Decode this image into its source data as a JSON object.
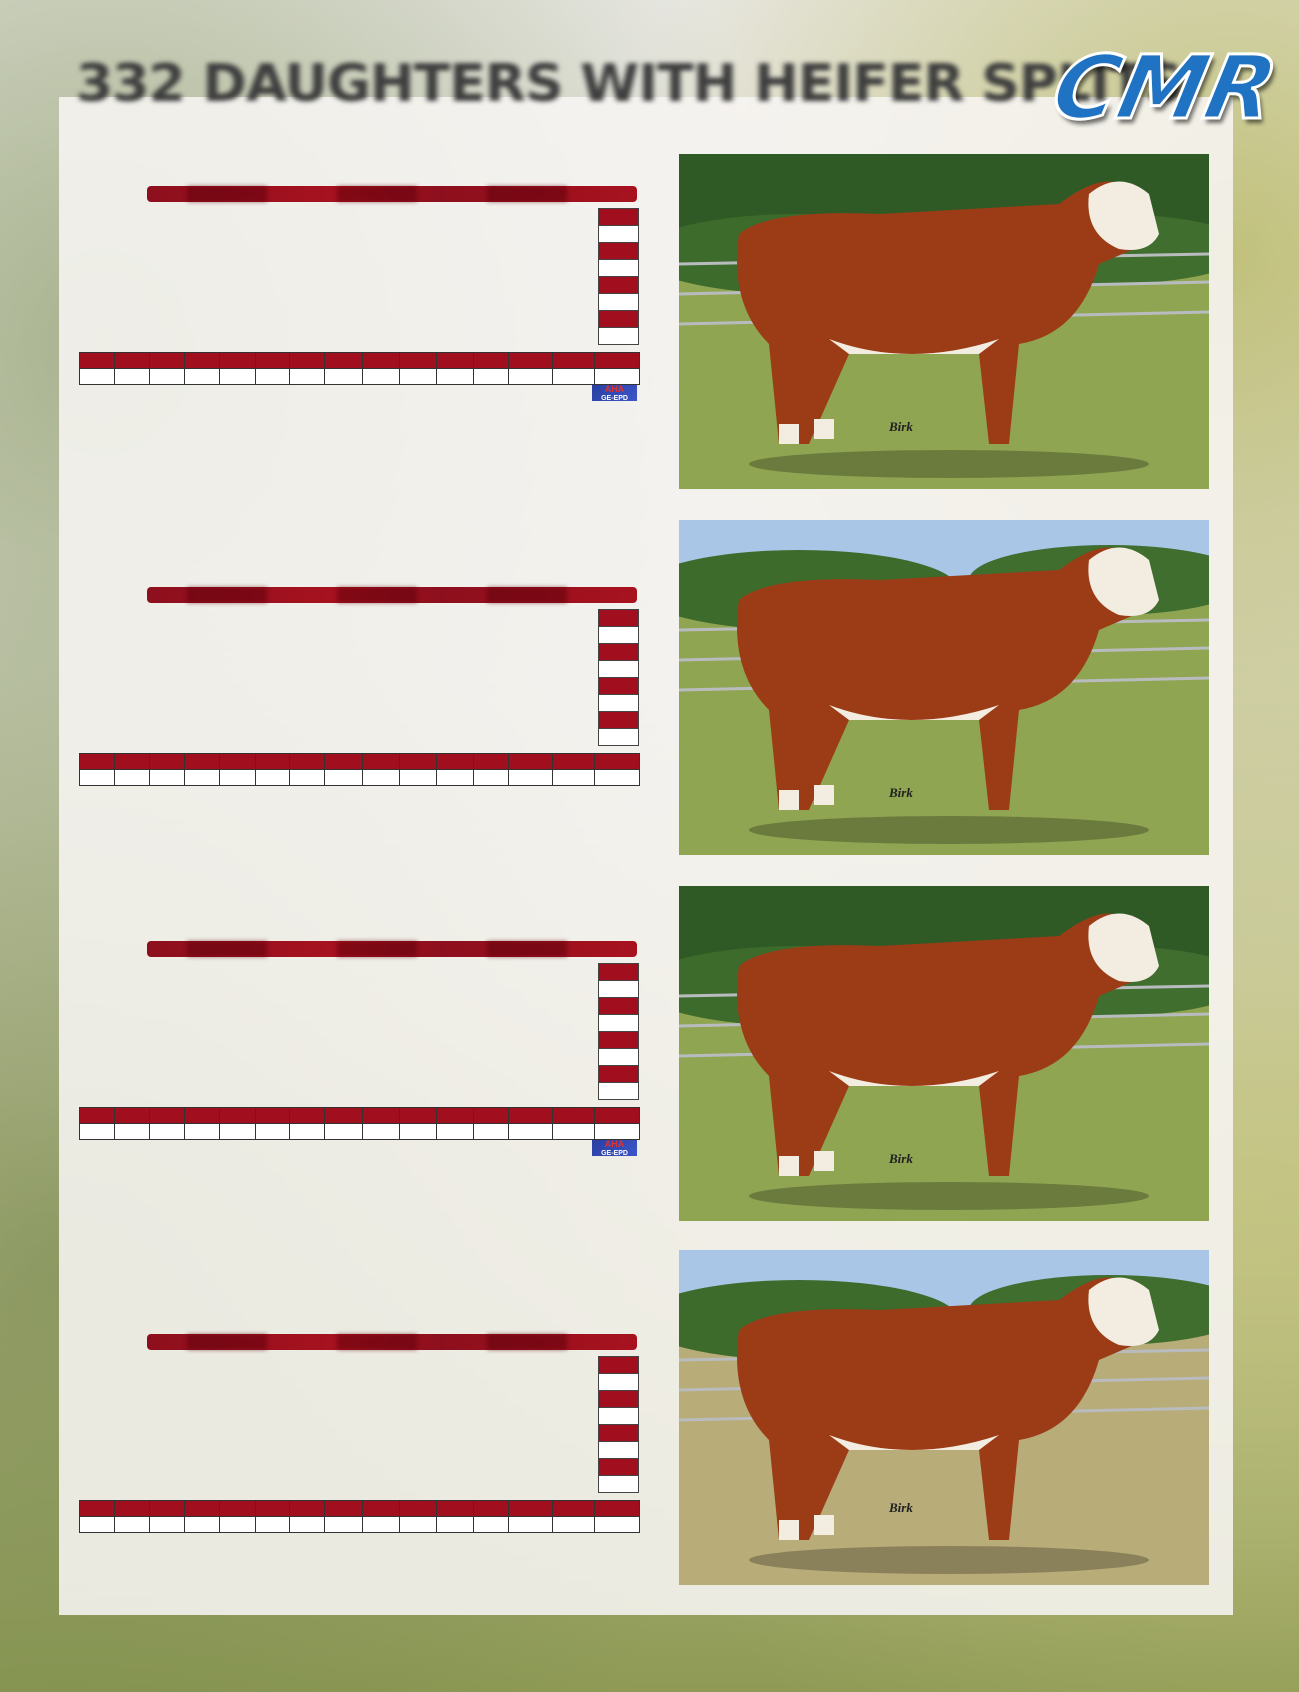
{
  "header": {
    "title": "332 DAUGHTERS WITH HEIFER SPLITS",
    "logo_text": "CMR"
  },
  "colors": {
    "accent_red": "#a10f1e",
    "logo_blue": "#1f73c2"
  },
  "sections": [
    {
      "photo_credit": "Birk",
      "aha_logo": true,
      "aha_text": "AHA",
      "aha_sub": "GE-EPD",
      "sky": false
    },
    {
      "photo_credit": "Birk",
      "aha_logo": false,
      "sky": true
    },
    {
      "photo_credit": "Birk",
      "aha_logo": true,
      "aha_text": "AHA",
      "aha_sub": "GE-EPD",
      "sky": false
    },
    {
      "photo_credit": "Birk",
      "aha_logo": false,
      "sky": true
    }
  ]
}
